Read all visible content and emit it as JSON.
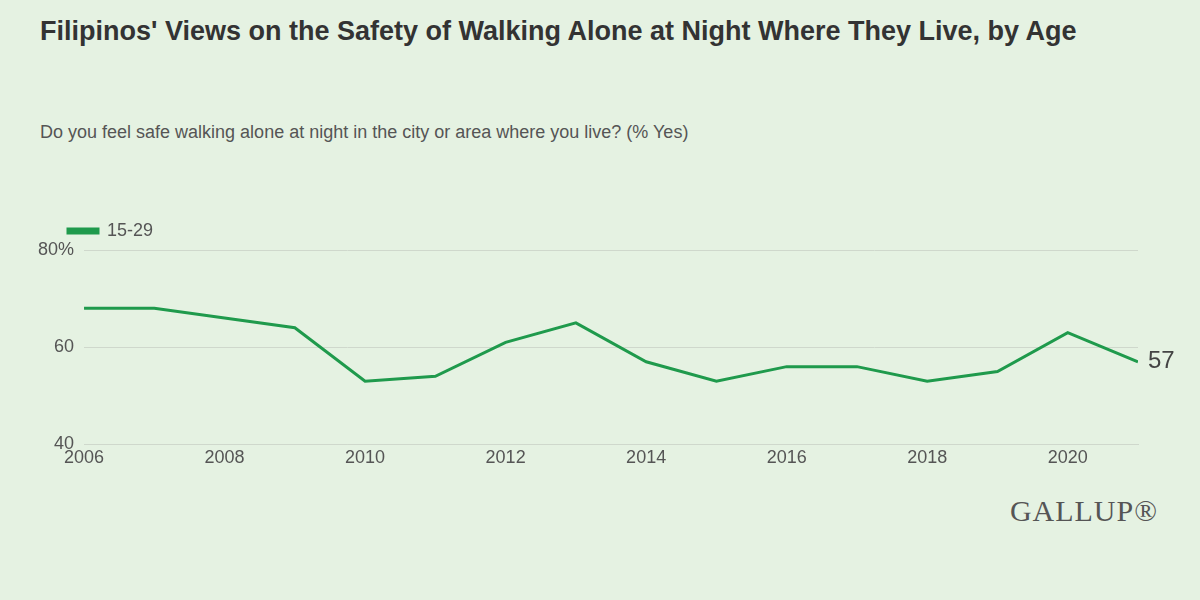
{
  "chart_data": {
    "type": "line",
    "title": "Filipinos' Views on the Safety of Walking Alone at Night Where They Live, by Age",
    "subtitle": "Do you feel safe walking alone at night in the city or area where you live? (% Yes)",
    "brand": "GALLUP®",
    "x": [
      2006,
      2007,
      2008,
      2009,
      2010,
      2011,
      2012,
      2013,
      2014,
      2015,
      2016,
      2017,
      2018,
      2019,
      2020,
      2021
    ],
    "series": [
      {
        "name": "15-29",
        "color": "#1f9a4c",
        "values": [
          68,
          68,
          66,
          64,
          53,
          54,
          61,
          65,
          57,
          53,
          56,
          56,
          53,
          55,
          63,
          57
        ]
      }
    ],
    "xlim": [
      2006,
      2021
    ],
    "xticks": [
      2006,
      2008,
      2010,
      2012,
      2014,
      2016,
      2018,
      2020
    ],
    "ylim": [
      40,
      80
    ],
    "yticks": [
      40,
      60,
      {
        "value": 80,
        "label": "80%"
      }
    ],
    "grid": true,
    "legend": "top-left",
    "annotations": [
      {
        "text": "57",
        "x": 2021,
        "y": 57
      }
    ]
  }
}
